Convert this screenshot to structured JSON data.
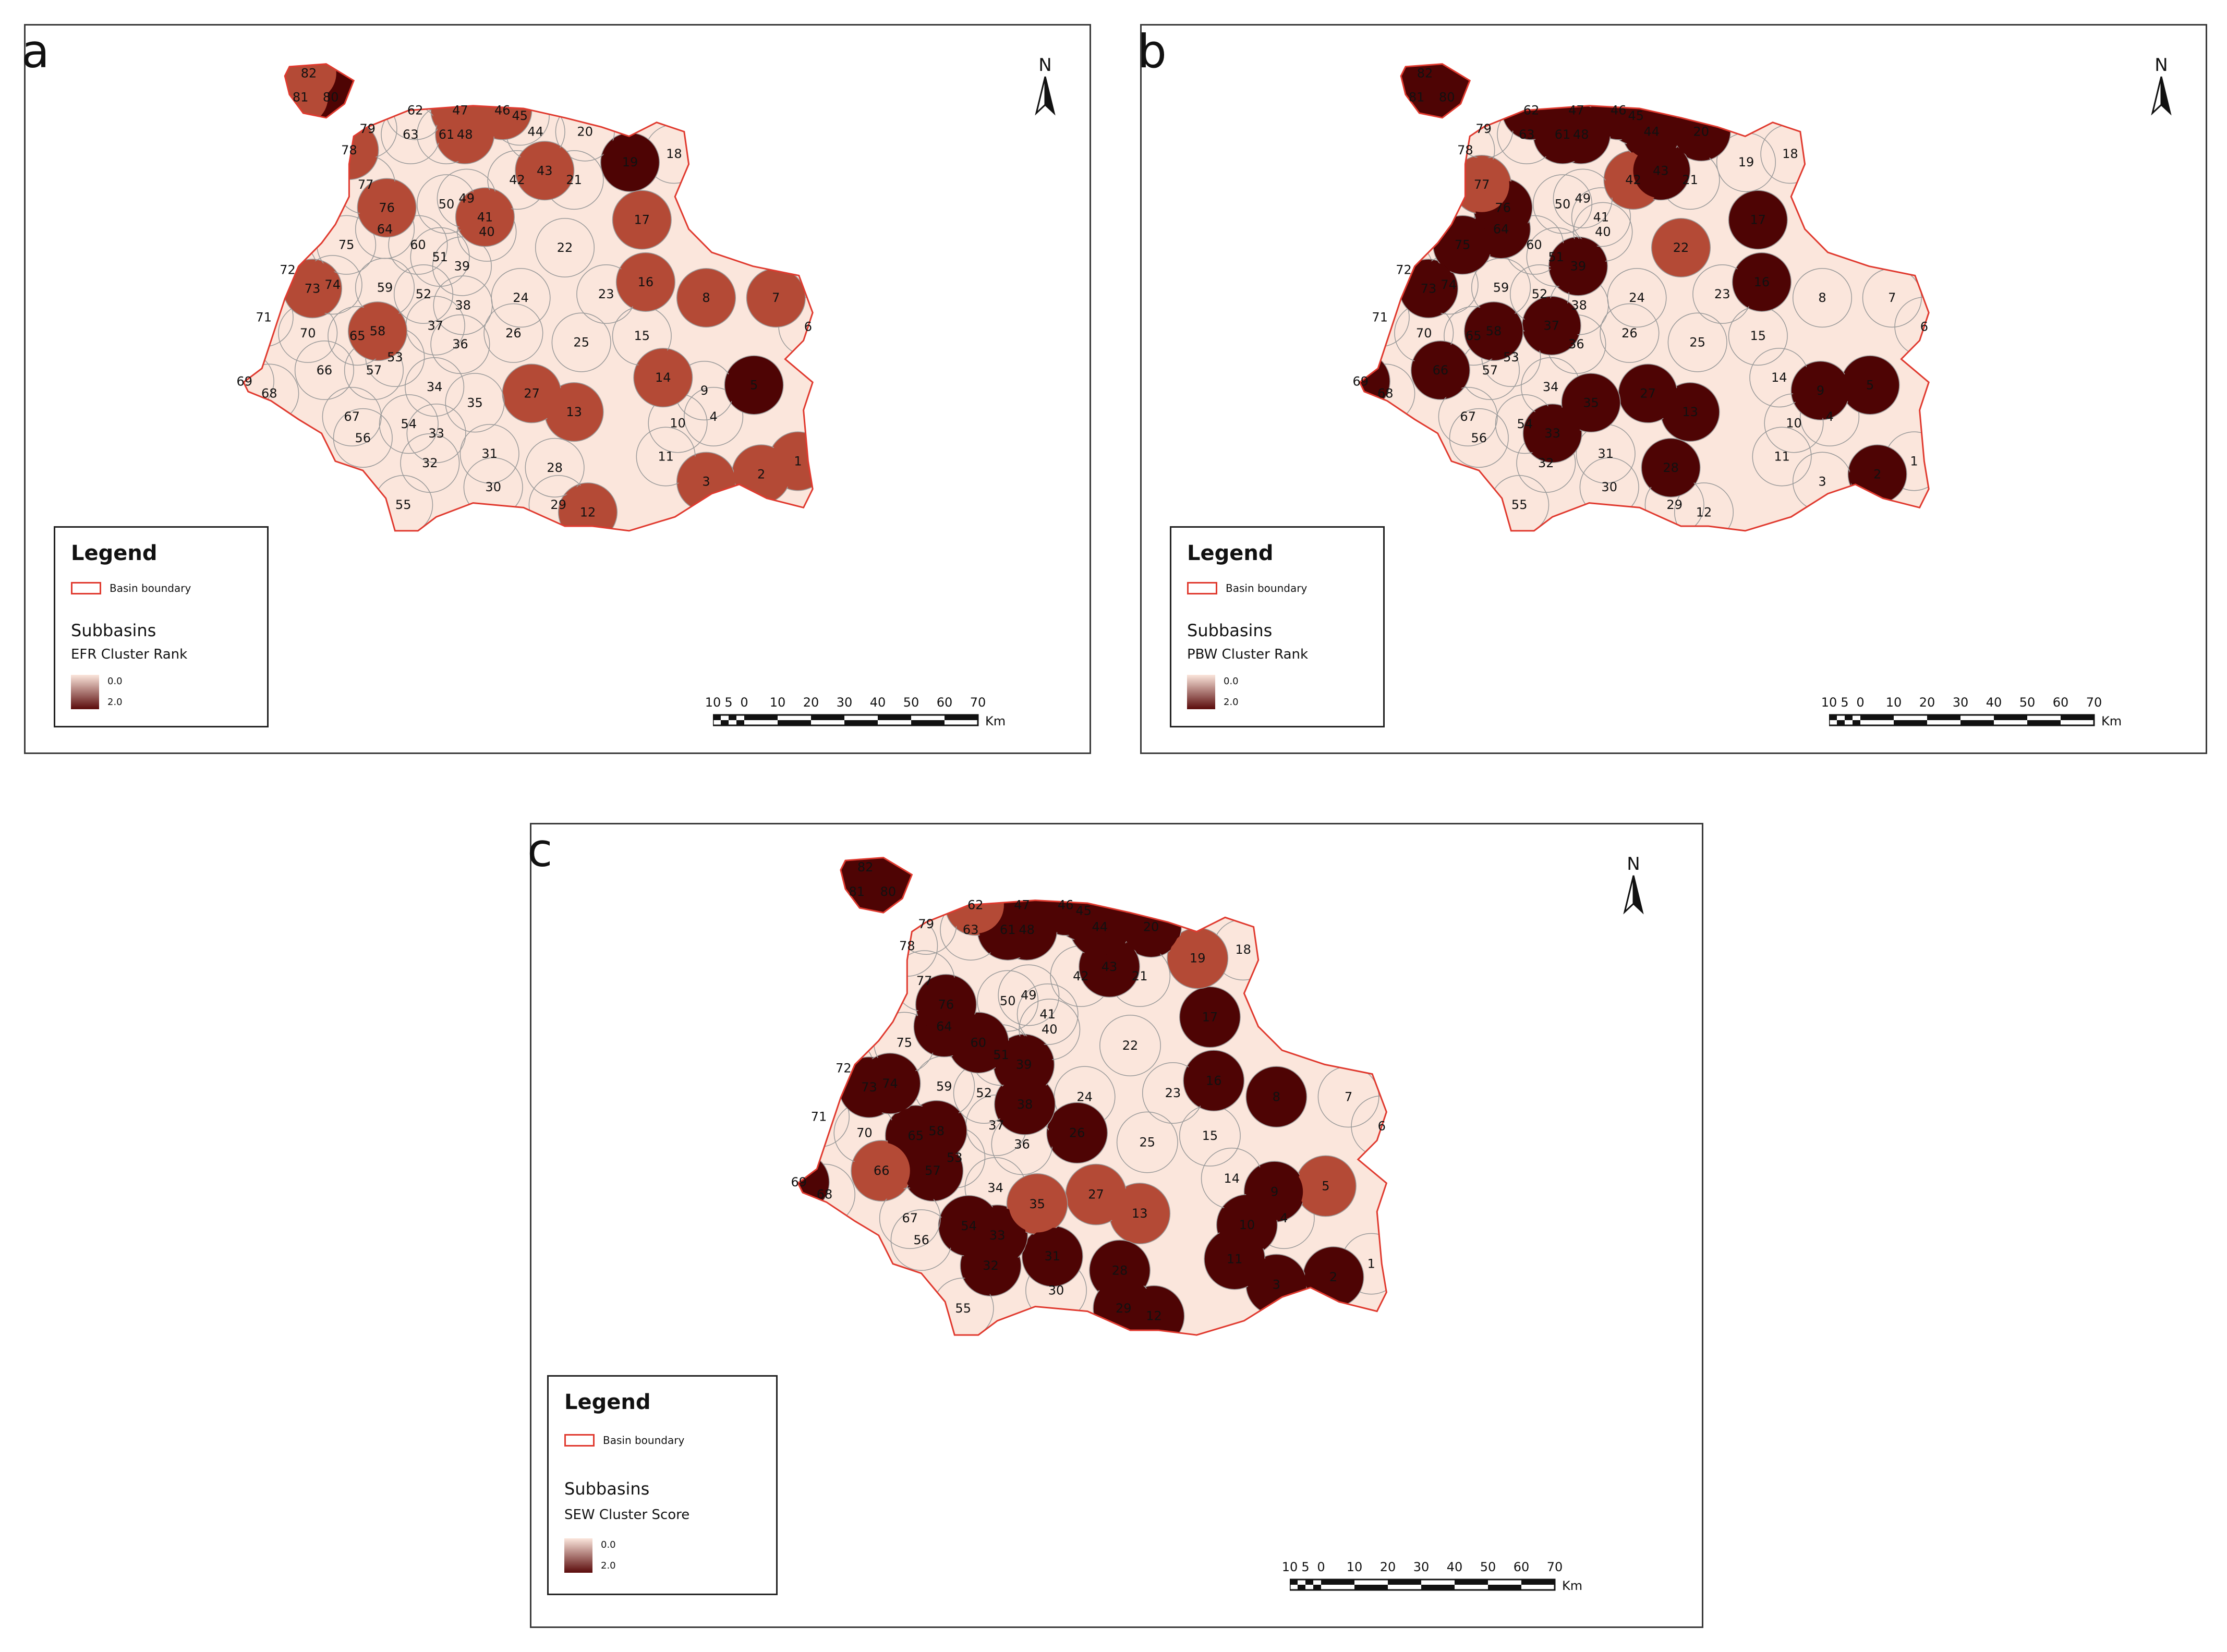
{
  "colors": {
    "low": "#fbe6dc",
    "mid": "#b44a36",
    "high": "#4e0404",
    "boundary": "#e03a2f",
    "internal_line": "#9a9a9a"
  },
  "north_label": "N",
  "scale_bar": {
    "ticks": [
      "10",
      "5",
      "0",
      "10",
      "20",
      "30",
      "40",
      "50",
      "60",
      "70"
    ],
    "unit": "Km"
  },
  "panels": [
    {
      "letter": "a",
      "legend": {
        "title": "Legend",
        "boundary_label": "Basin boundary",
        "group_label": "Subbasins",
        "field_label": "EFR Cluster Rank",
        "ramp_min": "0.0",
        "ramp_max": "2.0"
      },
      "subbasin_labels": [
        "82",
        "81",
        "80",
        "62",
        "47",
        "46",
        "45",
        "79",
        "63",
        "61",
        "48",
        "44",
        "20",
        "19",
        "18",
        "78",
        "77",
        "42",
        "43",
        "21",
        "50",
        "49",
        "76",
        "41",
        "17",
        "64",
        "40",
        "75",
        "60",
        "51",
        "39",
        "22",
        "72",
        "73",
        "74",
        "59",
        "52",
        "38",
        "24",
        "16",
        "8",
        "7",
        "23",
        "71",
        "70",
        "65",
        "58",
        "37",
        "36",
        "26",
        "25",
        "15",
        "6",
        "66",
        "53",
        "69",
        "68",
        "57",
        "34",
        "27",
        "14",
        "9",
        "5",
        "35",
        "13",
        "67",
        "54",
        "56",
        "33",
        "10",
        "4",
        "11",
        "1",
        "32",
        "31",
        "28",
        "3",
        "2",
        "30",
        "55",
        "29",
        "12"
      ],
      "rank": {
        "1": 1,
        "2": 1,
        "3": 1,
        "5": 2,
        "7": 1,
        "8": 1,
        "12": 1,
        "13": 1,
        "14": 1,
        "16": 1,
        "17": 1,
        "19": 2,
        "27": 1,
        "41": 1,
        "43": 1,
        "46": 1,
        "47": 1,
        "48": 1,
        "58": 1,
        "73": 1,
        "76": 1,
        "78": 1,
        "80": 2,
        "81": 1,
        "82": 1
      }
    },
    {
      "letter": "b",
      "legend": {
        "title": "Legend",
        "boundary_label": "Basin boundary",
        "group_label": "Subbasins",
        "field_label": "PBW Cluster Rank",
        "ramp_min": "0.0",
        "ramp_max": "2.0"
      },
      "subbasin_labels": [
        "82",
        "81",
        "80",
        "62",
        "47",
        "46",
        "45",
        "79",
        "63",
        "61",
        "48",
        "44",
        "20",
        "19",
        "18",
        "78",
        "77",
        "42",
        "43",
        "21",
        "50",
        "49",
        "76",
        "41",
        "17",
        "64",
        "40",
        "75",
        "60",
        "51",
        "39",
        "22",
        "72",
        "73",
        "74",
        "59",
        "52",
        "38",
        "24",
        "16",
        "8",
        "7",
        "23",
        "71",
        "70",
        "65",
        "58",
        "37",
        "36",
        "26",
        "25",
        "15",
        "6",
        "66",
        "53",
        "69",
        "68",
        "57",
        "34",
        "27",
        "14",
        "9",
        "5",
        "35",
        "13",
        "67",
        "54",
        "56",
        "33",
        "10",
        "4",
        "11",
        "1",
        "32",
        "31",
        "28",
        "3",
        "2",
        "30",
        "55",
        "29",
        "12"
      ],
      "rank": {
        "2": 2,
        "5": 2,
        "13": 2,
        "16": 2,
        "17": 2,
        "20": 2,
        "22": 1,
        "27": 2,
        "28": 2,
        "33": 2,
        "35": 2,
        "37": 2,
        "39": 2,
        "42": 1,
        "43": 2,
        "44": 2,
        "45": 2,
        "46": 2,
        "48": 2,
        "58": 2,
        "61": 2,
        "62": 2,
        "64": 2,
        "66": 2,
        "69": 2,
        "73": 2,
        "75": 2,
        "76": 2,
        "77": 1,
        "80": 2,
        "81": 2,
        "82": 2,
        "9": 2
      }
    },
    {
      "letter": "c",
      "legend": {
        "title": "Legend",
        "boundary_label": "Basin boundary",
        "group_label": "Subbasins",
        "field_label": "SEW Cluster Score",
        "ramp_min": "0.0",
        "ramp_max": "2.0"
      },
      "subbasin_labels": [
        "82",
        "81",
        "80",
        "62",
        "47",
        "46",
        "45",
        "79",
        "63",
        "61",
        "48",
        "44",
        "20",
        "19",
        "18",
        "78",
        "77",
        "42",
        "43",
        "21",
        "50",
        "49",
        "76",
        "41",
        "17",
        "64",
        "40",
        "75",
        "60",
        "51",
        "39",
        "22",
        "72",
        "73",
        "74",
        "59",
        "52",
        "38",
        "24",
        "16",
        "8",
        "7",
        "23",
        "71",
        "70",
        "65",
        "58",
        "37",
        "36",
        "26",
        "25",
        "15",
        "6",
        "66",
        "53",
        "69",
        "68",
        "57",
        "34",
        "27",
        "14",
        "9",
        "5",
        "35",
        "13",
        "67",
        "54",
        "56",
        "33",
        "10",
        "4",
        "11",
        "1",
        "32",
        "31",
        "28",
        "3",
        "2",
        "30",
        "55",
        "29",
        "12"
      ],
      "rank": {
        "2": 2,
        "3": 2,
        "5": 1,
        "8": 2,
        "9": 2,
        "10": 2,
        "11": 2,
        "12": 2,
        "13": 1,
        "16": 2,
        "17": 2,
        "19": 1,
        "20": 2,
        "26": 2,
        "27": 1,
        "28": 2,
        "29": 2,
        "31": 2,
        "32": 2,
        "33": 2,
        "35": 1,
        "38": 2,
        "39": 2,
        "43": 2,
        "44": 2,
        "45": 2,
        "46": 2,
        "47": 2,
        "48": 2,
        "54": 2,
        "57": 2,
        "58": 2,
        "60": 2,
        "61": 2,
        "62": 1,
        "64": 2,
        "65": 2,
        "66": 1,
        "69": 2,
        "73": 2,
        "74": 2,
        "76": 2,
        "80": 2,
        "81": 2,
        "82": 2
      }
    }
  ]
}
